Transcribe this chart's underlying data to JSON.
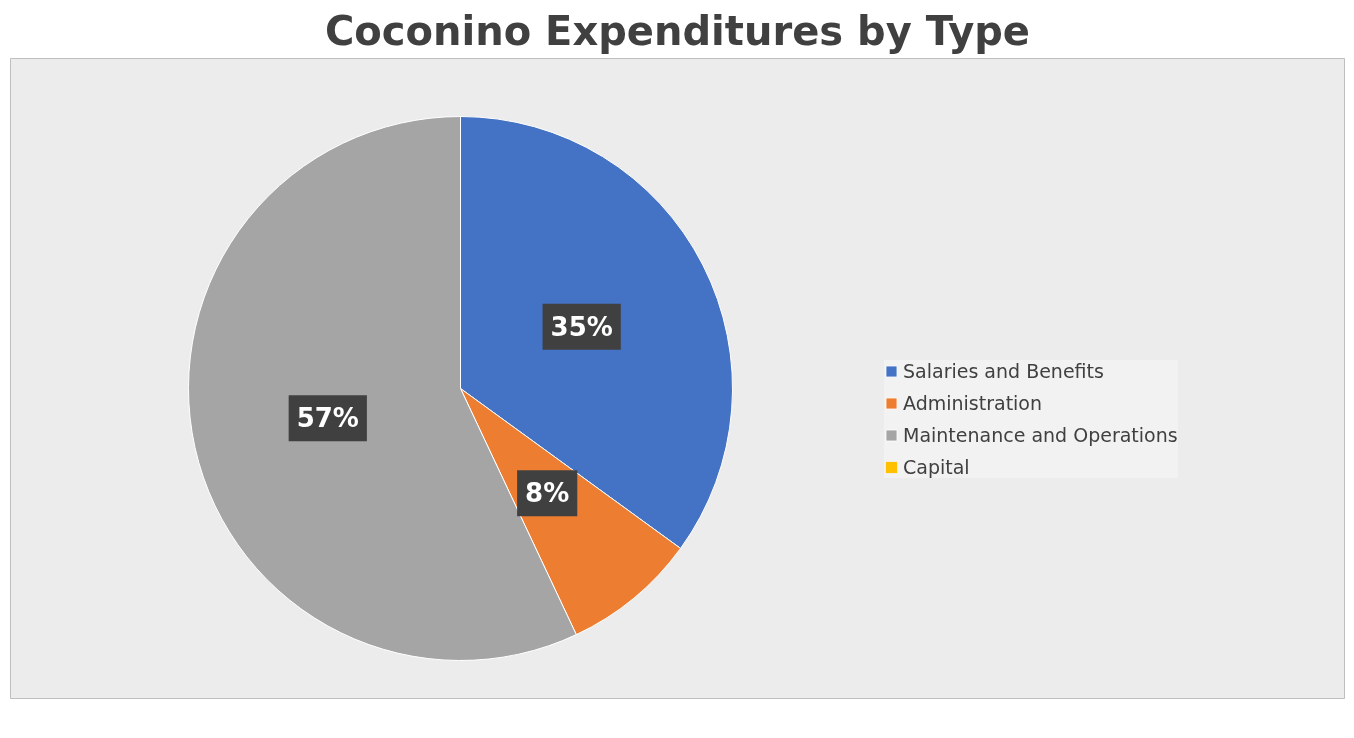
{
  "chart_data": {
    "type": "pie",
    "title": "Coconino Expenditures by Type",
    "categories": [
      "Salaries and Benefits",
      "Administration",
      "Maintenance and Operations",
      "Capital"
    ],
    "values": [
      35,
      8,
      57,
      0
    ],
    "colors": [
      "#4472c4",
      "#ed7d31",
      "#a5a5a5",
      "#ffc000"
    ],
    "value_labels": [
      "35%",
      "8%",
      "57%",
      null
    ],
    "legend": "right"
  }
}
